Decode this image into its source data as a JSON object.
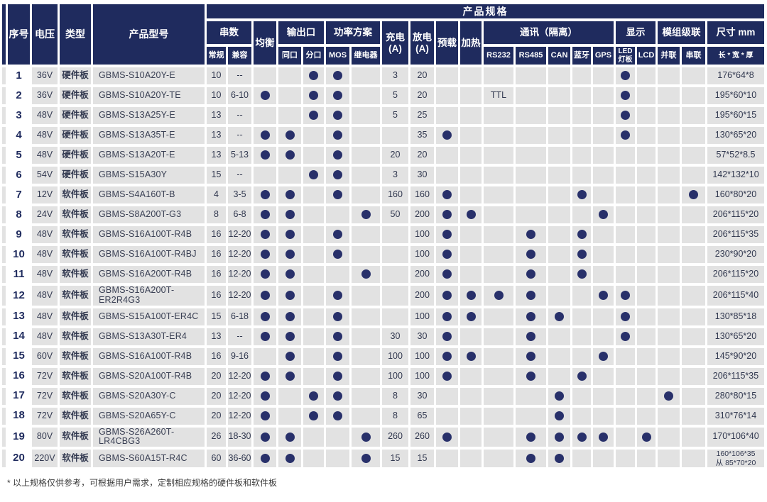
{
  "page": {
    "footnote": "* 以上规格仅供参考，可根据用户需求，定制相应规格的硬件板和软件板"
  },
  "colors": {
    "header_navy": "#1f2b5e",
    "dot_navy": "#28306a",
    "cell_gray": "#e2e2e2"
  },
  "header": {
    "no": "序号",
    "voltage": "电压",
    "type": "类型",
    "model": "产品型号",
    "spec_title": "产品规格",
    "groups": {
      "strings": "串数",
      "balance": "均衡",
      "output": "输出口",
      "power": "功率方案",
      "charge": "充电\n(A)",
      "discharge": "放电\n(A)",
      "preload": "预载",
      "heat": "加热",
      "comm": "通讯（隔离）",
      "display": "显示",
      "cascade": "模组级联",
      "size": "尺寸 mm"
    },
    "subs": {
      "normal": "常规",
      "compat": "兼容",
      "same_port": "同口",
      "split_port": "分口",
      "mos": "MOS",
      "relay": "继电器",
      "rs232": "RS232",
      "rs485": "RS485",
      "can": "CAN",
      "bluetooth": "蓝牙",
      "gps": "GPS",
      "led": "LED\n灯板",
      "lcd": "LCD",
      "parallel": "并联",
      "series": "串联",
      "lwh": "长 * 宽 * 厚"
    }
  },
  "table": {
    "spec_columns": [
      "常规",
      "兼容",
      "均衡",
      "同口",
      "分口",
      "MOS",
      "继电器",
      "充电(A)",
      "放电(A)",
      "预载",
      "加热",
      "RS232",
      "RS485",
      "CAN",
      "蓝牙",
      "GPS",
      "LED灯板",
      "LCD",
      "并联",
      "串联",
      "长*宽*厚"
    ],
    "rows": [
      {
        "no": "1",
        "voltage": "36V",
        "type": "硬件板",
        "model": "GBMS-S10A20Y-E",
        "cells": [
          "10",
          "--",
          "",
          "",
          "●",
          "●",
          "",
          "3",
          "20",
          "",
          "",
          "",
          "",
          "",
          "",
          "",
          "●",
          "",
          "",
          "",
          "176*64*8"
        ]
      },
      {
        "no": "2",
        "voltage": "36V",
        "type": "硬件板",
        "model": "GBMS-S10A20Y-TE",
        "cells": [
          "10",
          "6-10",
          "●",
          "",
          "●",
          "●",
          "",
          "5",
          "20",
          "",
          "",
          "TTL",
          "",
          "",
          "",
          "",
          "●",
          "",
          "",
          "",
          "195*60*10"
        ]
      },
      {
        "no": "3",
        "voltage": "48V",
        "type": "硬件板",
        "model": "GBMS-S13A25Y-E",
        "cells": [
          "13",
          "--",
          "",
          "",
          "●",
          "●",
          "",
          "5",
          "25",
          "",
          "",
          "",
          "",
          "",
          "",
          "",
          "●",
          "",
          "",
          "",
          "195*60*15"
        ]
      },
      {
        "no": "4",
        "voltage": "48V",
        "type": "硬件板",
        "model": "GBMS-S13A35T-E",
        "cells": [
          "13",
          "--",
          "●",
          "●",
          "",
          "●",
          "",
          "",
          "35",
          "●",
          "",
          "",
          "",
          "",
          "",
          "",
          "●",
          "",
          "",
          "",
          "130*65*20"
        ]
      },
      {
        "no": "5",
        "voltage": "48V",
        "type": "硬件板",
        "model": "GBMS-S13A20T-E",
        "cells": [
          "13",
          "5-13",
          "●",
          "●",
          "",
          "●",
          "",
          "20",
          "20",
          "",
          "",
          "",
          "",
          "",
          "",
          "",
          "",
          "",
          "",
          "",
          "57*52*8.5"
        ]
      },
      {
        "no": "6",
        "voltage": "54V",
        "type": "硬件板",
        "model": "GBMS-S15A30Y",
        "cells": [
          "15",
          "--",
          "",
          "",
          "●",
          "●",
          "",
          "3",
          "30",
          "",
          "",
          "",
          "",
          "",
          "",
          "",
          "",
          "",
          "",
          "",
          "142*132*10"
        ]
      },
      {
        "no": "7",
        "voltage": "12V",
        "type": "软件板",
        "model": "GBMS-S4A160T-B",
        "cells": [
          "4",
          "3-5",
          "●",
          "●",
          "",
          "●",
          "",
          "160",
          "160",
          "●",
          "",
          "",
          "",
          "",
          "●",
          "",
          "",
          "",
          "",
          "●",
          "160*80*20"
        ]
      },
      {
        "no": "8",
        "voltage": "24V",
        "type": "软件板",
        "model": "GBMS-S8A200T-G3",
        "cells": [
          "8",
          "6-8",
          "●",
          "●",
          "",
          "",
          "●",
          "50",
          "200",
          "●",
          "●",
          "",
          "",
          "",
          "",
          "●",
          "",
          "",
          "",
          "",
          "206*115*20"
        ]
      },
      {
        "no": "9",
        "voltage": "48V",
        "type": "软件板",
        "model": "GBMS-S16A100T-R4B",
        "cells": [
          "16",
          "12-20",
          "●",
          "●",
          "",
          "●",
          "",
          "",
          "100",
          "●",
          "",
          "",
          "●",
          "",
          "●",
          "",
          "",
          "",
          "",
          "",
          "206*115*35"
        ]
      },
      {
        "no": "10",
        "voltage": "48V",
        "type": "软件板",
        "model": "GBMS-S16A100T-R4BJ",
        "cells": [
          "16",
          "12-20",
          "●",
          "●",
          "",
          "●",
          "",
          "",
          "100",
          "●",
          "",
          "",
          "●",
          "",
          "●",
          "",
          "",
          "",
          "",
          "",
          "230*90*20"
        ]
      },
      {
        "no": "11",
        "voltage": "48V",
        "type": "软件板",
        "model": "GBMS-S16A200T-R4B",
        "cells": [
          "16",
          "12-20",
          "●",
          "●",
          "",
          "",
          "●",
          "",
          "200",
          "●",
          "",
          "",
          "●",
          "",
          "●",
          "",
          "",
          "",
          "",
          "",
          "206*115*20"
        ]
      },
      {
        "no": "12",
        "voltage": "48V",
        "type": "软件板",
        "model": "GBMS-S16A200T-ER2R4G3",
        "cells": [
          "16",
          "12-20",
          "●",
          "●",
          "",
          "●",
          "",
          "",
          "200",
          "●",
          "●",
          "●",
          "●",
          "",
          "",
          "●",
          "●",
          "",
          "",
          "",
          "206*115*40"
        ]
      },
      {
        "no": "13",
        "voltage": "48V",
        "type": "软件板",
        "model": "GBMS-S15A100T-ER4C",
        "cells": [
          "15",
          "6-18",
          "●",
          "●",
          "",
          "●",
          "",
          "",
          "100",
          "●",
          "●",
          "",
          "●",
          "●",
          "",
          "",
          "●",
          "",
          "",
          "",
          "130*85*18"
        ]
      },
      {
        "no": "14",
        "voltage": "48V",
        "type": "软件板",
        "model": "GBMS-S13A30T-ER4",
        "cells": [
          "13",
          "--",
          "●",
          "●",
          "",
          "●",
          "",
          "30",
          "30",
          "●",
          "",
          "",
          "●",
          "",
          "",
          "",
          "●",
          "",
          "",
          "",
          "130*65*20"
        ]
      },
      {
        "no": "15",
        "voltage": "60V",
        "type": "软件板",
        "model": "GBMS-S16A100T-R4B",
        "cells": [
          "16",
          "9-16",
          "",
          "●",
          "",
          "●",
          "",
          "100",
          "100",
          "●",
          "●",
          "",
          "●",
          "",
          "",
          "●",
          "",
          "",
          "",
          "",
          "145*90*20"
        ]
      },
      {
        "no": "16",
        "voltage": "72V",
        "type": "软件板",
        "model": "GBMS-S20A100T-R4B",
        "cells": [
          "20",
          "12-20",
          "●",
          "●",
          "",
          "●",
          "",
          "100",
          "100",
          "●",
          "",
          "",
          "●",
          "",
          "●",
          "",
          "",
          "",
          "",
          "",
          "206*115*35"
        ]
      },
      {
        "no": "17",
        "voltage": "72V",
        "type": "软件板",
        "model": "GBMS-S20A30Y-C",
        "cells": [
          "20",
          "12-20",
          "●",
          "",
          "●",
          "●",
          "",
          "8",
          "30",
          "",
          "",
          "",
          "",
          "●",
          "",
          "",
          "",
          "",
          "●",
          "",
          "280*80*15"
        ]
      },
      {
        "no": "18",
        "voltage": "72V",
        "type": "软件板",
        "model": "GBMS-S20A65Y-C",
        "cells": [
          "20",
          "12-20",
          "●",
          "",
          "●",
          "●",
          "",
          "8",
          "65",
          "",
          "",
          "",
          "",
          "●",
          "",
          "",
          "",
          "",
          "",
          "",
          "310*76*14"
        ]
      },
      {
        "no": "19",
        "voltage": "80V",
        "type": "软件板",
        "model": "GBMS-S26A260T-LR4CBG3",
        "cells": [
          "26",
          "18-30",
          "●",
          "●",
          "",
          "",
          "●",
          "260",
          "260",
          "●",
          "",
          "",
          "●",
          "●",
          "●",
          "●",
          "",
          "●",
          "",
          "",
          "170*106*40"
        ]
      },
      {
        "no": "20",
        "voltage": "220V",
        "type": "软件板",
        "model": "GBMS-S60A15T-R4C",
        "cells": [
          "60",
          "36-60",
          "●",
          "●",
          "",
          "",
          "●",
          "15",
          "15",
          "",
          "",
          "",
          "●",
          "●",
          "",
          "",
          "",
          "",
          "",
          "",
          "160*106*35\n从 85*70*20"
        ]
      }
    ]
  }
}
